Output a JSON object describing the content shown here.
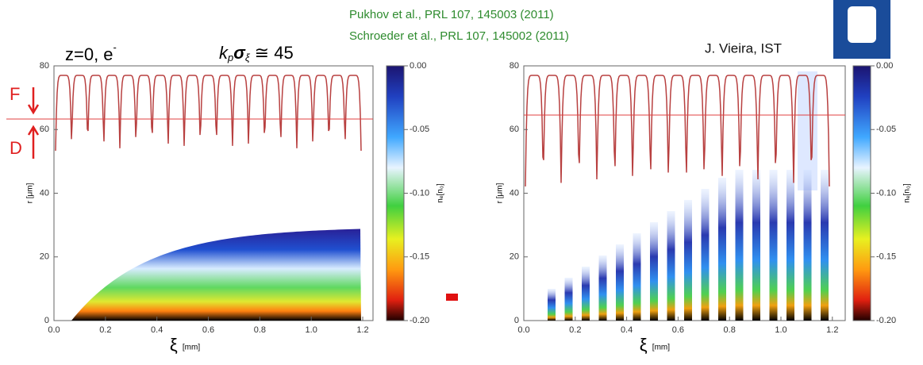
{
  "header": {
    "citations": [
      "Pukhov et al., PRL 107, 145003 (2011)",
      "Schroeder et al., PRL 107, 145002 (2011)"
    ],
    "author": "J. Vieira, IST"
  },
  "annotations": {
    "case": "z=0, e",
    "charge": "-",
    "formula_k": "k",
    "formula_p": "p",
    "formula_sigma": "σ",
    "formula_xi": "ξ",
    "formula_rest": "≅ 45",
    "focus": "F",
    "defocus": "D"
  },
  "chart_data": [
    {
      "type": "density",
      "xlabel": "ξ",
      "xunit": "[mm]",
      "ylabel": "r [μm]",
      "clabel": "nₑ[n₀]",
      "xlim": [
        0,
        1.24
      ],
      "ylim": [
        0,
        80
      ],
      "xticks": [
        {
          "value": 0,
          "label": "0.0"
        },
        0.2,
        0.4,
        0.6,
        0.8,
        {
          "value": 1,
          "label": "1.0"
        },
        1.2
      ],
      "yticks": [
        0,
        20,
        40,
        60,
        80
      ],
      "clim": [
        -0.2,
        0
      ],
      "cticks": [
        {
          "value": 0,
          "label": "0.00"
        },
        -0.05,
        {
          "value": -0.1,
          "label": "-0.10"
        },
        -0.15,
        {
          "value": -0.2,
          "label": "-0.20"
        }
      ]
    },
    {
      "type": "density",
      "xlabel": "ξ",
      "xunit": "[mm]",
      "ylabel": "r [μm]",
      "clabel": "nₑ[n₀]",
      "xlim": [
        0,
        1.25
      ],
      "ylim": [
        0,
        80
      ],
      "xticks": [
        {
          "value": 0,
          "label": "0.0"
        },
        0.2,
        0.4,
        0.6,
        0.8,
        {
          "value": 1,
          "label": "1.0"
        },
        1.2
      ],
      "yticks": [
        0,
        20,
        40,
        60,
        80
      ],
      "clim": [
        -0.2,
        0
      ],
      "cticks": [
        {
          "value": 0,
          "label": "0.00"
        },
        -0.05,
        {
          "value": -0.1,
          "label": "-0.10"
        },
        -0.15,
        {
          "value": -0.2,
          "label": "-0.20"
        }
      ]
    }
  ]
}
